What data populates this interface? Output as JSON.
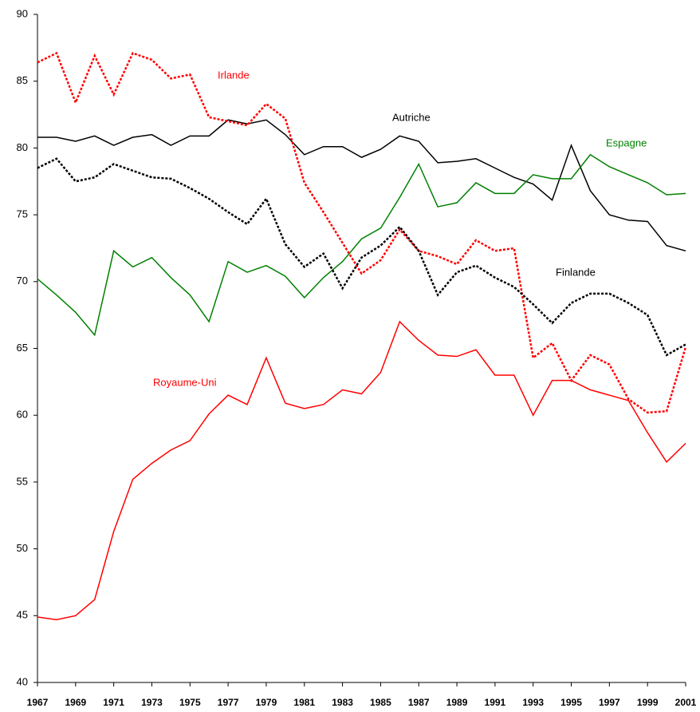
{
  "chart_data": {
    "type": "line",
    "x": [
      1967,
      1968,
      1969,
      1970,
      1971,
      1972,
      1973,
      1974,
      1975,
      1976,
      1977,
      1978,
      1979,
      1980,
      1981,
      1982,
      1983,
      1984,
      1985,
      1986,
      1987,
      1988,
      1989,
      1990,
      1991,
      1992,
      1993,
      1994,
      1995,
      1996,
      1997,
      1998,
      1999,
      2000,
      2001
    ],
    "xlim": [
      1967,
      2001
    ],
    "xticks": [
      1967,
      1969,
      1971,
      1973,
      1975,
      1977,
      1979,
      1981,
      1983,
      1985,
      1987,
      1989,
      1991,
      1993,
      1995,
      1997,
      1999,
      2001
    ],
    "ylim": [
      40,
      90
    ],
    "yticks": [
      40,
      45,
      50,
      55,
      60,
      65,
      70,
      75,
      80,
      85,
      90
    ],
    "series": [
      {
        "name": "Autriche",
        "color": "#000000",
        "style": "solid",
        "values": [
          80.8,
          80.8,
          80.5,
          80.9,
          80.2,
          80.8,
          81.0,
          80.2,
          80.9,
          80.9,
          82.1,
          81.8,
          82.1,
          81.0,
          79.5,
          80.1,
          80.1,
          79.3,
          79.9,
          80.9,
          80.5,
          78.9,
          79.0,
          79.2,
          78.5,
          77.8,
          77.3,
          76.1,
          80.2,
          76.8,
          75.0,
          74.6,
          74.5,
          72.7,
          72.3
        ]
      },
      {
        "name": "Espagne",
        "color": "#008000",
        "style": "solid",
        "values": [
          70.2,
          69.0,
          67.7,
          66.0,
          72.3,
          71.1,
          71.8,
          70.3,
          69.0,
          67.0,
          71.5,
          70.7,
          71.2,
          70.4,
          68.8,
          70.3,
          71.5,
          73.2,
          74.0,
          76.3,
          78.8,
          75.6,
          75.9,
          77.4,
          76.6,
          76.6,
          78.0,
          77.7,
          77.7,
          79.5,
          78.6,
          78.0,
          77.4,
          76.5,
          76.6
        ]
      },
      {
        "name": "Royaume-Uni",
        "color": "#ff0000",
        "style": "solid",
        "values": [
          44.9,
          44.7,
          45.0,
          46.2,
          51.3,
          55.2,
          56.4,
          57.4,
          58.1,
          60.1,
          61.5,
          60.8,
          64.3,
          60.9,
          60.5,
          60.8,
          61.9,
          61.6,
          63.2,
          67.0,
          65.6,
          64.5,
          64.4,
          64.9,
          63.0,
          63.0,
          60.0,
          62.6,
          62.6,
          61.9,
          61.5,
          61.1,
          58.7,
          56.5,
          57.9
        ]
      },
      {
        "name": "Irlande",
        "color": "#ff0000",
        "style": "dotted",
        "values": [
          86.4,
          87.1,
          83.4,
          86.9,
          84.0,
          87.1,
          86.6,
          85.2,
          85.5,
          82.3,
          82.0,
          81.7,
          83.3,
          82.2,
          77.4,
          75.2,
          72.9,
          70.6,
          71.6,
          73.9,
          72.3,
          71.9,
          71.3,
          73.1,
          72.3,
          72.5,
          64.3,
          65.4,
          62.6,
          64.5,
          63.8,
          61.2,
          60.2,
          60.3,
          65.1
        ]
      },
      {
        "name": "Finlande",
        "color": "#000000",
        "style": "dotted",
        "values": [
          78.5,
          79.2,
          77.5,
          77.8,
          78.8,
          78.3,
          77.8,
          77.7,
          77.0,
          76.2,
          75.2,
          74.3,
          76.2,
          72.8,
          71.1,
          72.1,
          69.5,
          71.8,
          72.7,
          74.1,
          72.3,
          69.0,
          70.7,
          71.2,
          70.3,
          69.6,
          68.3,
          66.9,
          68.4,
          69.1,
          69.1,
          68.4,
          67.5,
          64.5,
          65.3
        ]
      }
    ]
  }
}
